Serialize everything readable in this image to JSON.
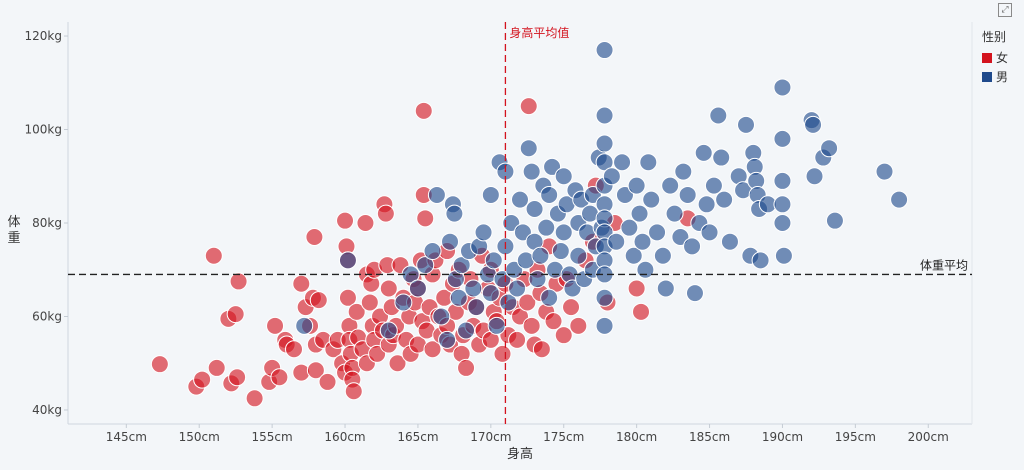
{
  "legend": {
    "title": "性别",
    "items": [
      {
        "label": "女",
        "color": "#d3131e"
      },
      {
        "label": "男",
        "color": "#1f4a8c"
      }
    ]
  },
  "toolbar": {
    "expand_icon": "expand-icon"
  },
  "chart_data": {
    "type": "scatter",
    "xlabel": "身高",
    "ylabel": "体重",
    "xlim": [
      141,
      203
    ],
    "ylim": [
      37,
      123
    ],
    "x_ticks": [
      145,
      150,
      155,
      160,
      165,
      170,
      175,
      180,
      185,
      190,
      195,
      200
    ],
    "x_tick_labels": [
      "145cm",
      "150cm",
      "155cm",
      "160cm",
      "165cm",
      "170cm",
      "175cm",
      "180cm",
      "185cm",
      "190cm",
      "195cm",
      "200cm"
    ],
    "y_ticks": [
      40,
      60,
      80,
      100,
      120
    ],
    "y_tick_labels": [
      "40kg",
      "60kg",
      "80kg",
      "100kg",
      "120kg"
    ],
    "grid": false,
    "legend_position": "top-right",
    "reference_lines": [
      {
        "axis": "x",
        "value": 171,
        "label": "身高平均值",
        "color": "#d3131e"
      },
      {
        "axis": "y",
        "value": 69,
        "label": "体重平均",
        "color": "#222222"
      }
    ],
    "series": [
      {
        "name": "女",
        "color": "#d3131e",
        "points": [
          [
            147.3,
            49.8
          ],
          [
            149.8,
            45
          ],
          [
            150.2,
            46.5
          ],
          [
            151,
            73
          ],
          [
            151.2,
            49
          ],
          [
            152,
            59.5
          ],
          [
            152.2,
            45.7
          ],
          [
            152.6,
            47
          ],
          [
            152.5,
            60.5
          ],
          [
            152.7,
            67.5
          ],
          [
            153.8,
            42.5
          ],
          [
            154.8,
            46
          ],
          [
            155,
            49
          ],
          [
            155.2,
            58
          ],
          [
            155.5,
            47
          ],
          [
            155.9,
            55
          ],
          [
            156,
            54
          ],
          [
            156.5,
            53
          ],
          [
            157,
            67
          ],
          [
            157,
            48
          ],
          [
            157.3,
            62
          ],
          [
            157.6,
            58
          ],
          [
            157.8,
            64
          ],
          [
            157.9,
            77
          ],
          [
            158,
            54
          ],
          [
            158,
            48.5
          ],
          [
            158.2,
            63.5
          ],
          [
            158.5,
            55
          ],
          [
            158.8,
            46
          ],
          [
            159.2,
            53
          ],
          [
            159.5,
            55
          ],
          [
            159.8,
            50
          ],
          [
            160,
            48
          ],
          [
            160,
            80.5
          ],
          [
            160.1,
            75
          ],
          [
            160.2,
            72
          ],
          [
            160.2,
            64
          ],
          [
            160.3,
            58
          ],
          [
            160.3,
            55
          ],
          [
            160.4,
            52
          ],
          [
            160.5,
            49
          ],
          [
            160.5,
            46.5
          ],
          [
            160.6,
            44
          ],
          [
            160.8,
            61
          ],
          [
            160.9,
            55.5
          ],
          [
            161.2,
            53
          ],
          [
            161.4,
            80
          ],
          [
            161.5,
            69
          ],
          [
            161.5,
            50
          ],
          [
            161.7,
            63
          ],
          [
            161.8,
            67
          ],
          [
            161.9,
            58
          ],
          [
            162,
            70
          ],
          [
            162,
            55
          ],
          [
            162.2,
            52
          ],
          [
            162.4,
            60
          ],
          [
            162.6,
            57
          ],
          [
            162.7,
            84
          ],
          [
            162.8,
            82
          ],
          [
            162.9,
            71
          ],
          [
            163,
            66
          ],
          [
            163,
            54
          ],
          [
            163.2,
            62
          ],
          [
            163.3,
            56
          ],
          [
            163.5,
            58
          ],
          [
            163.6,
            50
          ],
          [
            163.8,
            71
          ],
          [
            164,
            64
          ],
          [
            164.2,
            55
          ],
          [
            164.4,
            60
          ],
          [
            164.5,
            52
          ],
          [
            164.7,
            68
          ],
          [
            164.8,
            63
          ],
          [
            165,
            54
          ],
          [
            165,
            66
          ],
          [
            165.2,
            72
          ],
          [
            165.3,
            59
          ],
          [
            165.4,
            104
          ],
          [
            165.4,
            86
          ],
          [
            165.5,
            81
          ],
          [
            165.6,
            57
          ],
          [
            165.8,
            62
          ],
          [
            166,
            69
          ],
          [
            166,
            53
          ],
          [
            166.2,
            72
          ],
          [
            166.4,
            60
          ],
          [
            166.6,
            56
          ],
          [
            166.8,
            64
          ],
          [
            167,
            58
          ],
          [
            167,
            74
          ],
          [
            167.2,
            54
          ],
          [
            167.4,
            67
          ],
          [
            167.6,
            61
          ],
          [
            167.8,
            70
          ],
          [
            168,
            52
          ],
          [
            168.1,
            56
          ],
          [
            168.3,
            49
          ],
          [
            168.5,
            63
          ],
          [
            168.6,
            68
          ],
          [
            168.8,
            58
          ],
          [
            169,
            62
          ],
          [
            169.2,
            54
          ],
          [
            169.4,
            73
          ],
          [
            169.5,
            57
          ],
          [
            169.8,
            66
          ],
          [
            170,
            70
          ],
          [
            170,
            55
          ],
          [
            170.2,
            61
          ],
          [
            170.4,
            59
          ],
          [
            170.6,
            64
          ],
          [
            170.8,
            52
          ],
          [
            171,
            67
          ],
          [
            171.2,
            56
          ],
          [
            171.5,
            62
          ],
          [
            171.8,
            55
          ],
          [
            172,
            60
          ],
          [
            172.3,
            68
          ],
          [
            172.5,
            63
          ],
          [
            172.6,
            105
          ],
          [
            172.8,
            58
          ],
          [
            173,
            54
          ],
          [
            173.2,
            70
          ],
          [
            173.4,
            65
          ],
          [
            173.5,
            53
          ],
          [
            173.8,
            61
          ],
          [
            174,
            75
          ],
          [
            174.3,
            59
          ],
          [
            174.5,
            67
          ],
          [
            175,
            56
          ],
          [
            175.2,
            68
          ],
          [
            175.5,
            62
          ],
          [
            176,
            58
          ],
          [
            176.5,
            72
          ],
          [
            177,
            76
          ],
          [
            177.2,
            88
          ],
          [
            178,
            63
          ],
          [
            178.5,
            80
          ],
          [
            180,
            66
          ],
          [
            180.3,
            61
          ],
          [
            183.5,
            81
          ]
        ]
      },
      {
        "name": "男",
        "color": "#1f4a8c",
        "points": [
          [
            157.2,
            58
          ],
          [
            160.2,
            72
          ],
          [
            163,
            57
          ],
          [
            164,
            63
          ],
          [
            164.5,
            69
          ],
          [
            165,
            66
          ],
          [
            165.5,
            71
          ],
          [
            166,
            74
          ],
          [
            166.3,
            86
          ],
          [
            166.6,
            60
          ],
          [
            167,
            55
          ],
          [
            167.2,
            76
          ],
          [
            167.4,
            84
          ],
          [
            167.5,
            82
          ],
          [
            167.6,
            68
          ],
          [
            167.8,
            64
          ],
          [
            168,
            71
          ],
          [
            168.3,
            57
          ],
          [
            168.5,
            74
          ],
          [
            168.8,
            66
          ],
          [
            169,
            62
          ],
          [
            169.2,
            75
          ],
          [
            169.5,
            78
          ],
          [
            169.8,
            69
          ],
          [
            170,
            65
          ],
          [
            170,
            86
          ],
          [
            170.2,
            72
          ],
          [
            170.4,
            58
          ],
          [
            170.6,
            93
          ],
          [
            170.8,
            68
          ],
          [
            171,
            91
          ],
          [
            171,
            75
          ],
          [
            171.2,
            63
          ],
          [
            171.4,
            80
          ],
          [
            171.6,
            70
          ],
          [
            171.8,
            66
          ],
          [
            172,
            85
          ],
          [
            172.2,
            78
          ],
          [
            172.4,
            72
          ],
          [
            172.6,
            96
          ],
          [
            172.8,
            91
          ],
          [
            173,
            76
          ],
          [
            173,
            83
          ],
          [
            173.2,
            68
          ],
          [
            173.4,
            73
          ],
          [
            173.6,
            88
          ],
          [
            173.8,
            79
          ],
          [
            174,
            64
          ],
          [
            174,
            86
          ],
          [
            174.2,
            92
          ],
          [
            174.4,
            70
          ],
          [
            174.6,
            82
          ],
          [
            174.8,
            74
          ],
          [
            175,
            90
          ],
          [
            175,
            78
          ],
          [
            175.2,
            84
          ],
          [
            175.4,
            69
          ],
          [
            175.6,
            66
          ],
          [
            175.8,
            87
          ],
          [
            176,
            80
          ],
          [
            176,
            73
          ],
          [
            176.2,
            85
          ],
          [
            176.4,
            68
          ],
          [
            176.6,
            78
          ],
          [
            176.8,
            82
          ],
          [
            177,
            86
          ],
          [
            177,
            70
          ],
          [
            177.2,
            75
          ],
          [
            177.4,
            94
          ],
          [
            177.6,
            79
          ],
          [
            177.8,
            117
          ],
          [
            177.8,
            103
          ],
          [
            177.8,
            97
          ],
          [
            177.8,
            93
          ],
          [
            177.8,
            88
          ],
          [
            177.8,
            84
          ],
          [
            177.8,
            81
          ],
          [
            177.8,
            78
          ],
          [
            177.8,
            75
          ],
          [
            177.8,
            72
          ],
          [
            177.8,
            69
          ],
          [
            177.8,
            64
          ],
          [
            177.8,
            58
          ],
          [
            178.3,
            90
          ],
          [
            178.6,
            76
          ],
          [
            179,
            93
          ],
          [
            179.2,
            86
          ],
          [
            179.5,
            79
          ],
          [
            179.8,
            73
          ],
          [
            180,
            88
          ],
          [
            180.2,
            82
          ],
          [
            180.4,
            76
          ],
          [
            180.6,
            70
          ],
          [
            180.8,
            93
          ],
          [
            181,
            85
          ],
          [
            181.4,
            78
          ],
          [
            181.8,
            73
          ],
          [
            182,
            66
          ],
          [
            182.3,
            88
          ],
          [
            182.6,
            82
          ],
          [
            183,
            77
          ],
          [
            183.2,
            91
          ],
          [
            183.5,
            86
          ],
          [
            183.8,
            75
          ],
          [
            184,
            65
          ],
          [
            184.3,
            80
          ],
          [
            184.6,
            95
          ],
          [
            184.8,
            84
          ],
          [
            185,
            78
          ],
          [
            185.3,
            88
          ],
          [
            185.6,
            103
          ],
          [
            185.8,
            94
          ],
          [
            186,
            85
          ],
          [
            186.4,
            76
          ],
          [
            187,
            90
          ],
          [
            187.3,
            87
          ],
          [
            187.5,
            101
          ],
          [
            187.8,
            73
          ],
          [
            188,
            95
          ],
          [
            188.1,
            92
          ],
          [
            188.2,
            89
          ],
          [
            188.3,
            86
          ],
          [
            188.4,
            83
          ],
          [
            188.5,
            72
          ],
          [
            189,
            84
          ],
          [
            190,
            109
          ],
          [
            190,
            98
          ],
          [
            190,
            89
          ],
          [
            190,
            84
          ],
          [
            190,
            80
          ],
          [
            190.1,
            73
          ],
          [
            192,
            102
          ],
          [
            192.1,
            101
          ],
          [
            192.2,
            90
          ],
          [
            192.8,
            94
          ],
          [
            193.2,
            96
          ],
          [
            193.6,
            80.5
          ],
          [
            197,
            91
          ],
          [
            198,
            85
          ]
        ]
      }
    ]
  }
}
